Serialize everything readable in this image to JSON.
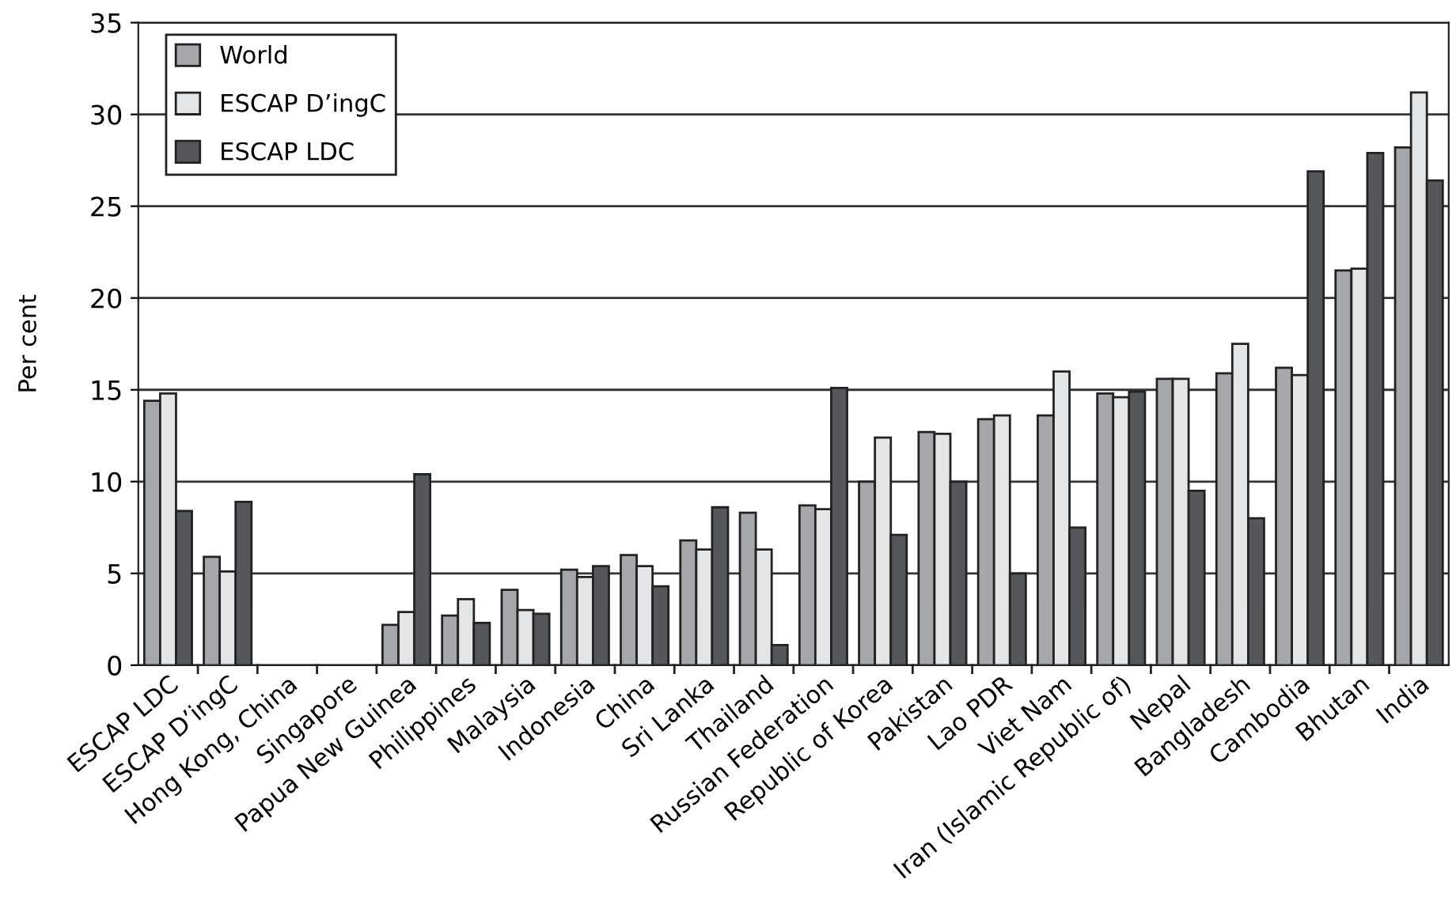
{
  "chart_data": {
    "type": "bar",
    "ylabel": "Per cent",
    "categories": [
      "ESCAP LDC",
      "ESCAP D’ingC",
      "Hong Kong, China",
      "Singapore",
      "Papua New Guinea",
      "Philippines",
      "Malaysia",
      "Indonesia",
      "China",
      "Sri Lanka",
      "Thailand",
      "Russian Federation",
      "Republic of Korea",
      "Pakistan",
      "Lao PDR",
      "Viet Nam",
      "Iran (Islamic Republic of)",
      "Nepal",
      "Bangladesh",
      "Cambodia",
      "Bhutan",
      "India"
    ],
    "series": [
      {
        "name": "World",
        "color": "#a6a7ab",
        "values": [
          14.4,
          5.9,
          null,
          null,
          2.2,
          2.7,
          4.1,
          5.2,
          6.0,
          6.8,
          8.3,
          8.7,
          10.0,
          12.7,
          13.4,
          13.6,
          14.8,
          15.6,
          15.9,
          16.2,
          21.5,
          28.2
        ]
      },
      {
        "name": "ESCAP D’ingC",
        "color": "#e4e5e7",
        "values": [
          14.8,
          5.1,
          null,
          null,
          2.9,
          3.6,
          3.0,
          4.8,
          5.4,
          6.3,
          6.3,
          8.5,
          12.4,
          12.6,
          13.6,
          16.0,
          14.6,
          15.6,
          17.5,
          15.8,
          21.6,
          31.2
        ]
      },
      {
        "name": "ESCAP LDC",
        "color": "#55575a",
        "values": [
          8.4,
          8.9,
          null,
          null,
          10.4,
          2.3,
          2.8,
          5.4,
          4.3,
          8.6,
          1.1,
          15.1,
          7.1,
          10.0,
          5.0,
          7.5,
          14.9,
          9.5,
          8.0,
          26.9,
          27.9,
          26.4
        ]
      }
    ],
    "ylim": [
      0,
      35
    ],
    "yticks": [
      0,
      5,
      10,
      15,
      20,
      25,
      30,
      35
    ],
    "grid": "y",
    "legend": "top left"
  }
}
